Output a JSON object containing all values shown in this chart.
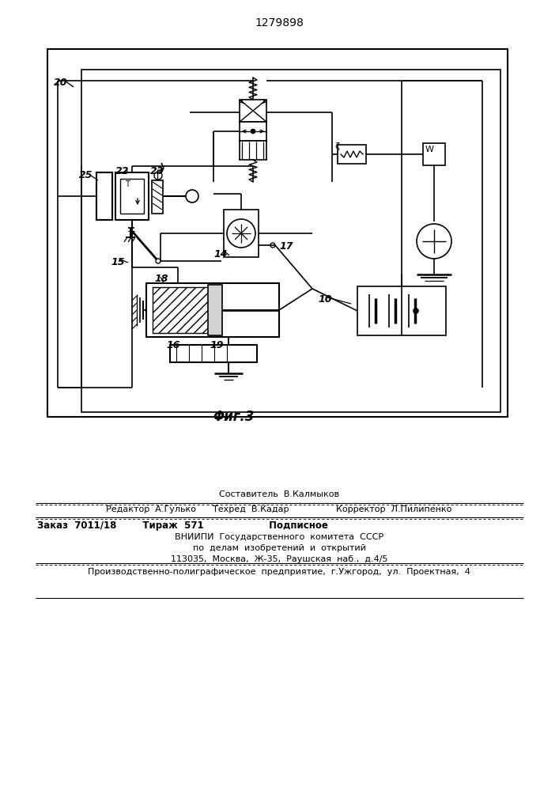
{
  "patent_number": "1279898",
  "fig_label": "Φиг.3",
  "bg_color": "#ffffff",
  "composer": "Составитель  В.Калмыков",
  "editor": "Редактор  А.Гулько      Техред  В.Кадар                 Корректор  Л.Пилипенко",
  "order": "Заказ  7011/18        Тираж  571                    Подписное",
  "vnipi1": "ВНИИПИ  Государственного  комитета  СССР",
  "vnipi2": "по  делам  изобретений  и  открытий",
  "vnipi3": "113035,  Москва,  Ж-35,  Раушская  наб.,  д.4/5",
  "prod": "Производственно-полиграфическое  предприятие,  г.Ужгород,  ул.  Проектная,  4"
}
